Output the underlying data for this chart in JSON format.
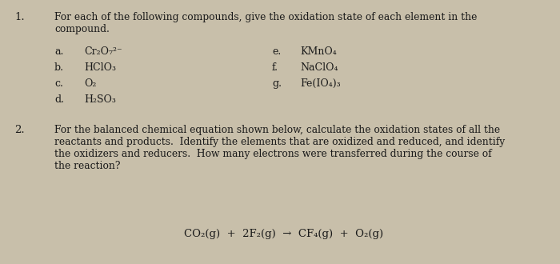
{
  "background_color": "#c8bfaa",
  "text_color": "#1a1a1a",
  "fig_width": 7.0,
  "fig_height": 3.3,
  "question1_number": "1.",
  "question1_text_line1": "For each of the following compounds, give the oxidation state of each element in the",
  "question1_text_line2": "compound.",
  "items_left": [
    [
      "a.",
      "Cr₂O₇²⁻"
    ],
    [
      "b.",
      "HClO₃"
    ],
    [
      "c.",
      "O₂"
    ],
    [
      "d.",
      "H₂SO₃"
    ]
  ],
  "items_right": [
    [
      "e.",
      "KMnO₄"
    ],
    [
      "f.",
      "NaClO₄"
    ],
    [
      "g.",
      "Fe(IO₄)₃"
    ]
  ],
  "question2_number": "2.",
  "question2_text_line1": "For the balanced chemical equation shown below, calculate the oxidation states of all the",
  "question2_text_line2": "reactants and products.  Identify the elements that are oxidized and reduced, and identify",
  "question2_text_line3": "the oxidizers and reducers.  How many electrons were transferred during the course of",
  "question2_text_line4": "the reaction?",
  "equation": "CO₂(g)  +  2F₂(g)  →  CF₄(g)  +  O₂(g)",
  "font_size_number": 9.5,
  "font_size_text": 8.8,
  "font_size_item": 9.0,
  "font_size_eq": 9.5
}
